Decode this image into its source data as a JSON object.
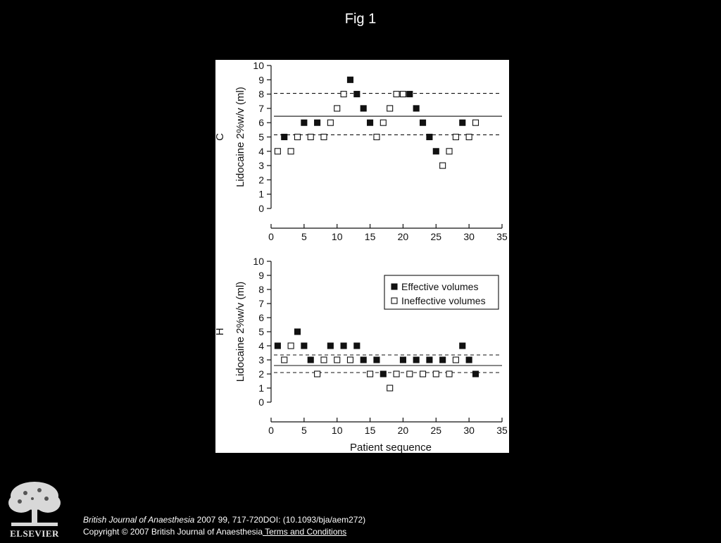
{
  "slide": {
    "title": "Fig 1"
  },
  "citation": {
    "journal": "British Journal of Anaesthesia",
    "details": " 2007 99, 717-720DOI: (10.1093/bja/aem272)",
    "copyright": "Copyright © 2007 British Journal of Anaesthesia",
    "terms_link": " Terms and Conditions"
  },
  "logo": {
    "text": "ELSEVIER",
    "icon": "elsevier-tree-logo"
  },
  "chart_data": [
    {
      "type": "scatter",
      "panel_label": "C",
      "ylabel": "Lidocaine 2%w/v (ml)",
      "xlabel": "",
      "xlim": [
        0,
        35
      ],
      "ylim": [
        0,
        10
      ],
      "xticks": [
        0,
        5,
        10,
        15,
        20,
        25,
        30,
        35
      ],
      "yticks": [
        0,
        1,
        2,
        3,
        4,
        5,
        6,
        7,
        8,
        9,
        10
      ],
      "reference_lines": [
        {
          "style": "dashed",
          "y": 8.05
        },
        {
          "style": "solid",
          "y": 6.45
        },
        {
          "style": "dashed",
          "y": 5.15
        }
      ],
      "series": [
        {
          "name": "Effective volumes",
          "marker": "filled-square",
          "points": [
            [
              2,
              5
            ],
            [
              5,
              6
            ],
            [
              7,
              6
            ],
            [
              12,
              9
            ],
            [
              13,
              8
            ],
            [
              14,
              7
            ],
            [
              15,
              6
            ],
            [
              21,
              8
            ],
            [
              22,
              7
            ],
            [
              23,
              6
            ],
            [
              24,
              5
            ],
            [
              25,
              4
            ],
            [
              29,
              6
            ]
          ]
        },
        {
          "name": "Ineffective volumes",
          "marker": "open-square",
          "points": [
            [
              1,
              4
            ],
            [
              3,
              4
            ],
            [
              4,
              5
            ],
            [
              6,
              5
            ],
            [
              8,
              5
            ],
            [
              9,
              6
            ],
            [
              10,
              7
            ],
            [
              11,
              8
            ],
            [
              16,
              5
            ],
            [
              17,
              6
            ],
            [
              18,
              7
            ],
            [
              19,
              8
            ],
            [
              20,
              8
            ],
            [
              26,
              3
            ],
            [
              27,
              4
            ],
            [
              28,
              5
            ],
            [
              30,
              5
            ],
            [
              31,
              6
            ]
          ]
        }
      ],
      "legend": null
    },
    {
      "type": "scatter",
      "panel_label": "H",
      "ylabel": "Lidocaine 2%w/v (ml)",
      "xlabel": "Patient sequence",
      "xlim": [
        0,
        35
      ],
      "ylim": [
        0,
        10
      ],
      "xticks": [
        0,
        5,
        10,
        15,
        20,
        25,
        30,
        35
      ],
      "yticks": [
        0,
        1,
        2,
        3,
        4,
        5,
        6,
        7,
        8,
        9,
        10
      ],
      "reference_lines": [
        {
          "style": "dashed",
          "y": 3.35
        },
        {
          "style": "solid",
          "y": 2.6
        },
        {
          "style": "dashed",
          "y": 2.1
        }
      ],
      "series": [
        {
          "name": "Effective volumes",
          "marker": "filled-square",
          "points": [
            [
              1,
              4
            ],
            [
              4,
              5
            ],
            [
              5,
              4
            ],
            [
              6,
              3
            ],
            [
              9,
              4
            ],
            [
              11,
              4
            ],
            [
              13,
              4
            ],
            [
              14,
              3
            ],
            [
              16,
              3
            ],
            [
              17,
              2
            ],
            [
              20,
              3
            ],
            [
              22,
              3
            ],
            [
              24,
              3
            ],
            [
              26,
              3
            ],
            [
              29,
              4
            ],
            [
              30,
              3
            ],
            [
              31,
              2
            ]
          ]
        },
        {
          "name": "Ineffective volumes",
          "marker": "open-square",
          "points": [
            [
              2,
              3
            ],
            [
              3,
              4
            ],
            [
              7,
              2
            ],
            [
              8,
              3
            ],
            [
              10,
              3
            ],
            [
              12,
              3
            ],
            [
              15,
              2
            ],
            [
              18,
              1
            ],
            [
              19,
              2
            ],
            [
              21,
              2
            ],
            [
              23,
              2
            ],
            [
              25,
              2
            ],
            [
              27,
              2
            ],
            [
              28,
              3
            ]
          ]
        }
      ],
      "legend": {
        "placement": "top-right",
        "entries": [
          "Effective volumes",
          "Ineffective volumes"
        ]
      }
    }
  ]
}
